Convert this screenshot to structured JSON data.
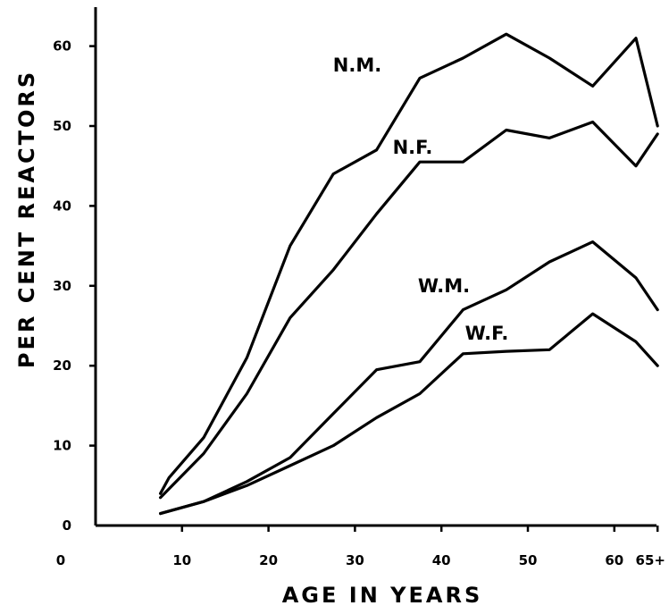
{
  "chart_data": {
    "type": "line",
    "title": "",
    "xlabel": "AGE IN YEARS",
    "ylabel": "PER CENT REACTORS",
    "xlim": [
      0,
      65
    ],
    "ylim": [
      0,
      65
    ],
    "x_ticks": [
      0,
      10,
      20,
      30,
      40,
      50,
      60,
      65
    ],
    "x_tick_labels": [
      "0",
      "10",
      "20",
      "30",
      "40",
      "50",
      "60",
      "65+"
    ],
    "y_ticks": [
      0,
      10,
      20,
      30,
      40,
      50,
      60
    ],
    "y_tick_labels": [
      "0",
      "10",
      "20",
      "30",
      "40",
      "50",
      "60"
    ],
    "grid": false,
    "legend": "none",
    "series": [
      {
        "name": "N.M.",
        "x": [
          7.5,
          8.5,
          12.5,
          17.5,
          22.5,
          27.5,
          32.5,
          37.5,
          42.5,
          47.5,
          52.5,
          57.5,
          62.5,
          65
        ],
        "y": [
          4,
          6,
          11,
          21,
          35,
          44,
          47,
          56,
          58.5,
          61.5,
          58.5,
          55,
          61,
          50
        ]
      },
      {
        "name": "N.F.",
        "x": [
          7.5,
          12.5,
          17.5,
          22.5,
          27.5,
          32.5,
          37.5,
          42.5,
          47.5,
          52.5,
          57.5,
          62.5,
          65
        ],
        "y": [
          3.5,
          9,
          16.5,
          26,
          32,
          39,
          45.5,
          45.5,
          49.5,
          48.5,
          50.5,
          45,
          49
        ]
      },
      {
        "name": "W.M.",
        "x": [
          7.5,
          12.5,
          17.5,
          22.5,
          27.5,
          32.5,
          37.5,
          42.5,
          47.5,
          52.5,
          57.5,
          62.5,
          65
        ],
        "y": [
          1.5,
          3,
          5.5,
          8.5,
          14,
          19.5,
          20.5,
          27,
          29.5,
          33,
          35.5,
          31,
          27
        ]
      },
      {
        "name": "W.F.",
        "x": [
          7.5,
          12.5,
          17.5,
          22.5,
          27.5,
          32.5,
          37.5,
          42.5,
          47.5,
          52.5,
          57.5,
          62.5,
          65
        ],
        "y": [
          1.5,
          3,
          5,
          7.5,
          10,
          13.5,
          16.5,
          21.5,
          21.8,
          22,
          26.5,
          23,
          20
        ]
      }
    ]
  }
}
